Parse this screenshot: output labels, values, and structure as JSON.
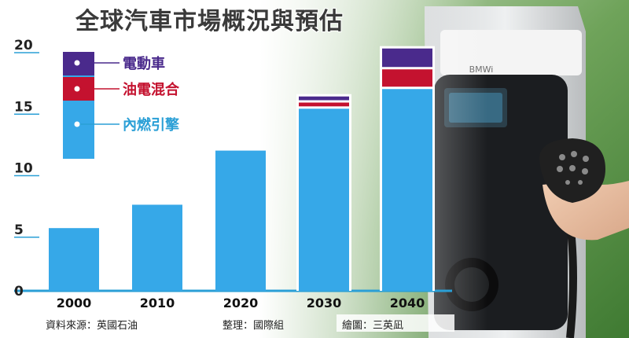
{
  "title": "全球汽車市場概況與預估",
  "footer": {
    "source": "資料來源：英國石油",
    "editor": "整理：國際組",
    "illustrator": "繪圖：三英凪"
  },
  "colors": {
    "accent_line": "#2a9fd6",
    "ev": "#4a2a8c",
    "hybrid": "#c4122f",
    "ice": "#36a8e8"
  },
  "chart_data": {
    "type": "bar",
    "stacked": true,
    "categories": [
      "2000",
      "2010",
      "2020",
      "2030",
      "2040"
    ],
    "series": [
      {
        "name": "內燃引擎",
        "color": "#36a8e8",
        "values": [
          5.1,
          7.0,
          11.4,
          14.9,
          16.5
        ]
      },
      {
        "name": "油電混合",
        "color": "#c4122f",
        "values": [
          0,
          0,
          0,
          0.5,
          1.6
        ]
      },
      {
        "name": "電動車",
        "color": "#4a2a8c",
        "values": [
          0,
          0,
          0,
          0.4,
          1.6
        ]
      }
    ],
    "yticks": [
      0,
      5,
      10,
      15,
      20
    ],
    "ylim": [
      0,
      20
    ],
    "legend_position": "top-left",
    "xlabel": "",
    "ylabel": ""
  }
}
